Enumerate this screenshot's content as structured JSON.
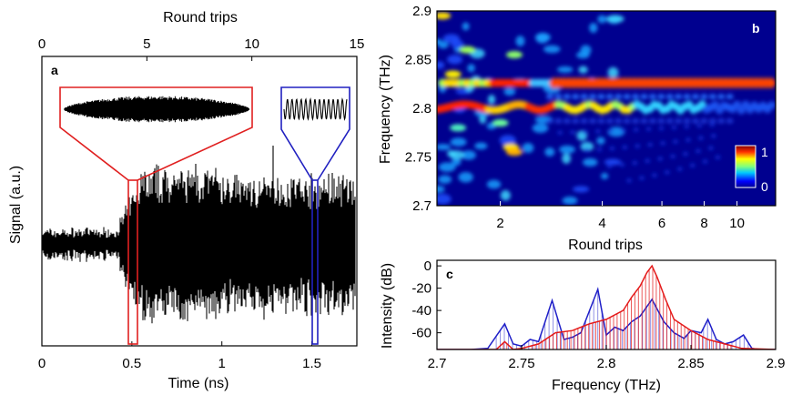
{
  "chart_data": [
    {
      "panel": "a",
      "type": "line",
      "xlabel": "Time (ns)",
      "ylabel": "Signal (a.u.)",
      "top_xlabel": "Round trips",
      "xlim": [
        0,
        1.75
      ],
      "xticks": [
        "0",
        "0.5",
        "1",
        "1.5"
      ],
      "top_xlim": [
        0,
        15
      ],
      "top_xticks": [
        "0",
        "5",
        "10",
        "15"
      ],
      "highlight_windows": [
        {
          "color": "#e02020",
          "x_range": [
            0.49,
            0.52
          ]
        },
        {
          "color": "#2020c0",
          "x_range": [
            1.5,
            1.52
          ]
        }
      ]
    },
    {
      "panel": "b",
      "type": "heatmap",
      "xlabel": "Round trips",
      "ylabel": "Frequency (THz)",
      "x_scale": "log",
      "xlim": [
        1.3,
        13
      ],
      "xticks": [
        "2",
        "4",
        "6",
        "8",
        "10"
      ],
      "ylim": [
        2.7,
        2.9
      ],
      "yticks": [
        "2.7",
        "2.75",
        "2.8",
        "2.85",
        "2.9"
      ],
      "colorbar_ticks": [
        "0",
        "1"
      ],
      "bands": [
        {
          "frequency": 2.825,
          "x_range": [
            2.6,
            13
          ],
          "intensity": 1.0
        },
        {
          "frequency": 2.8,
          "x_range": [
            1.3,
            2.6
          ],
          "intensity": 1.0
        },
        {
          "frequency": 2.8,
          "x_range": [
            2.6,
            13
          ],
          "intensity": 0.45
        }
      ]
    },
    {
      "panel": "c",
      "type": "line",
      "xlabel": "Frequency (THz)",
      "ylabel": "Intensity (dB)",
      "xlim": [
        2.7,
        2.9
      ],
      "xticks": [
        "2.7",
        "2.75",
        "2.8",
        "2.85",
        "2.9"
      ],
      "ylim": [
        -75,
        5
      ],
      "yticks": [
        "0",
        "-20",
        "-40",
        "-60"
      ],
      "series": [
        {
          "color": "#1f1fc8",
          "x": [
            2.7,
            2.72,
            2.73,
            2.74,
            2.745,
            2.75,
            2.755,
            2.76,
            2.768,
            2.775,
            2.78,
            2.785,
            2.795,
            2.8,
            2.805,
            2.81,
            2.815,
            2.82,
            2.827,
            2.834,
            2.84,
            2.846,
            2.85,
            2.856,
            2.86,
            2.865,
            2.87,
            2.875,
            2.881,
            2.886,
            2.89,
            2.9
          ],
          "y": [
            -75,
            -75,
            -74,
            -52,
            -70,
            -72,
            -66,
            -68,
            -31,
            -66,
            -64,
            -60,
            -21,
            -62,
            -55,
            -58,
            -50,
            -45,
            -30,
            -50,
            -60,
            -65,
            -58,
            -60,
            -48,
            -66,
            -70,
            -68,
            -62,
            -74,
            -75,
            -75
          ]
        },
        {
          "color": "#e41a1a",
          "x": [
            2.7,
            2.735,
            2.74,
            2.745,
            2.75,
            2.76,
            2.77,
            2.78,
            2.79,
            2.8,
            2.81,
            2.815,
            2.82,
            2.824,
            2.827,
            2.83,
            2.835,
            2.84,
            2.85,
            2.86,
            2.87,
            2.88,
            2.9
          ],
          "y": [
            -75,
            -75,
            -68,
            -75,
            -74,
            -70,
            -60,
            -58,
            -52,
            -48,
            -40,
            -28,
            -18,
            -6,
            0,
            -10,
            -30,
            -48,
            -58,
            -66,
            -70,
            -74,
            -75
          ]
        }
      ]
    }
  ]
}
